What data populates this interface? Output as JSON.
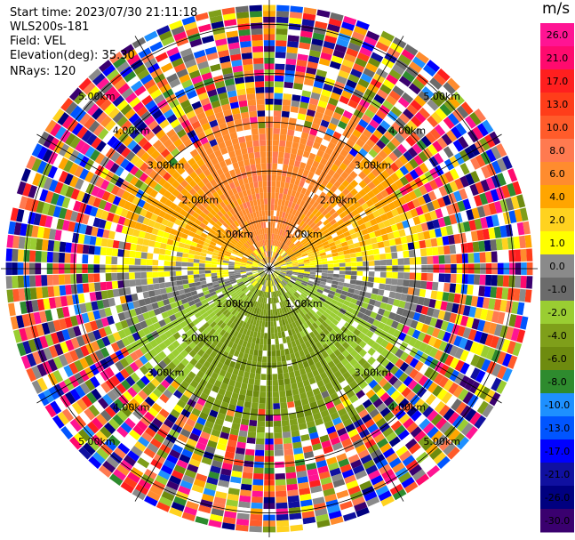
{
  "header": {
    "start_time": "Start time: 2023/07/30 21:11:18",
    "instrument": "WLS200s-181",
    "field": "Field: VEL",
    "elevation": "Elevation(deg): 35.30",
    "nrays": "NRays: 120"
  },
  "colorbar": {
    "unit": "m/s",
    "ticks": [
      "26.0",
      "21.0",
      "17.0",
      "13.0",
      "10.0",
      "8.0",
      "6.0",
      "4.0",
      "2.0",
      "1.0",
      "0.0",
      "-1.0",
      "-2.0",
      "-4.0",
      "-6.0",
      "-8.0",
      "-10.0",
      "-13.0",
      "-17.0",
      "-21.0",
      "-26.0",
      "-30.0"
    ],
    "colors": [
      "#ff1493",
      "#ff0a6e",
      "#ff1f1f",
      "#ff3d1a",
      "#ff5b2a",
      "#ff7a50",
      "#ff8c2e",
      "#ffa500",
      "#ffd21f",
      "#ffff00",
      "#8a8a8a",
      "#6b6b6b",
      "#9acd32",
      "#7f9f1a",
      "#6e8b0f",
      "#2e8b2e",
      "#1e90ff",
      "#0055ff",
      "#0000ff",
      "#1010a0",
      "#000080",
      "#3a006f"
    ]
  },
  "chart_data": {
    "type": "heatmap",
    "title": "",
    "projection": "polar PPI",
    "n_rays": 120,
    "range_rings_km": [
      1.0,
      2.0,
      3.0,
      4.0,
      5.0
    ],
    "range_labels": [
      "1.00km",
      "2.00km",
      "3.00km",
      "4.00km",
      "5.00km"
    ],
    "max_range_km": 5.5,
    "velocity_pattern": {
      "positive_sector": "north (yellow/orange, ~+2 to +6 m/s)",
      "negative_sector": "south (green, ~-4 to -8 m/s)",
      "zero_line": "east-west (gray)",
      "noise_beyond_km": 3.5
    }
  }
}
